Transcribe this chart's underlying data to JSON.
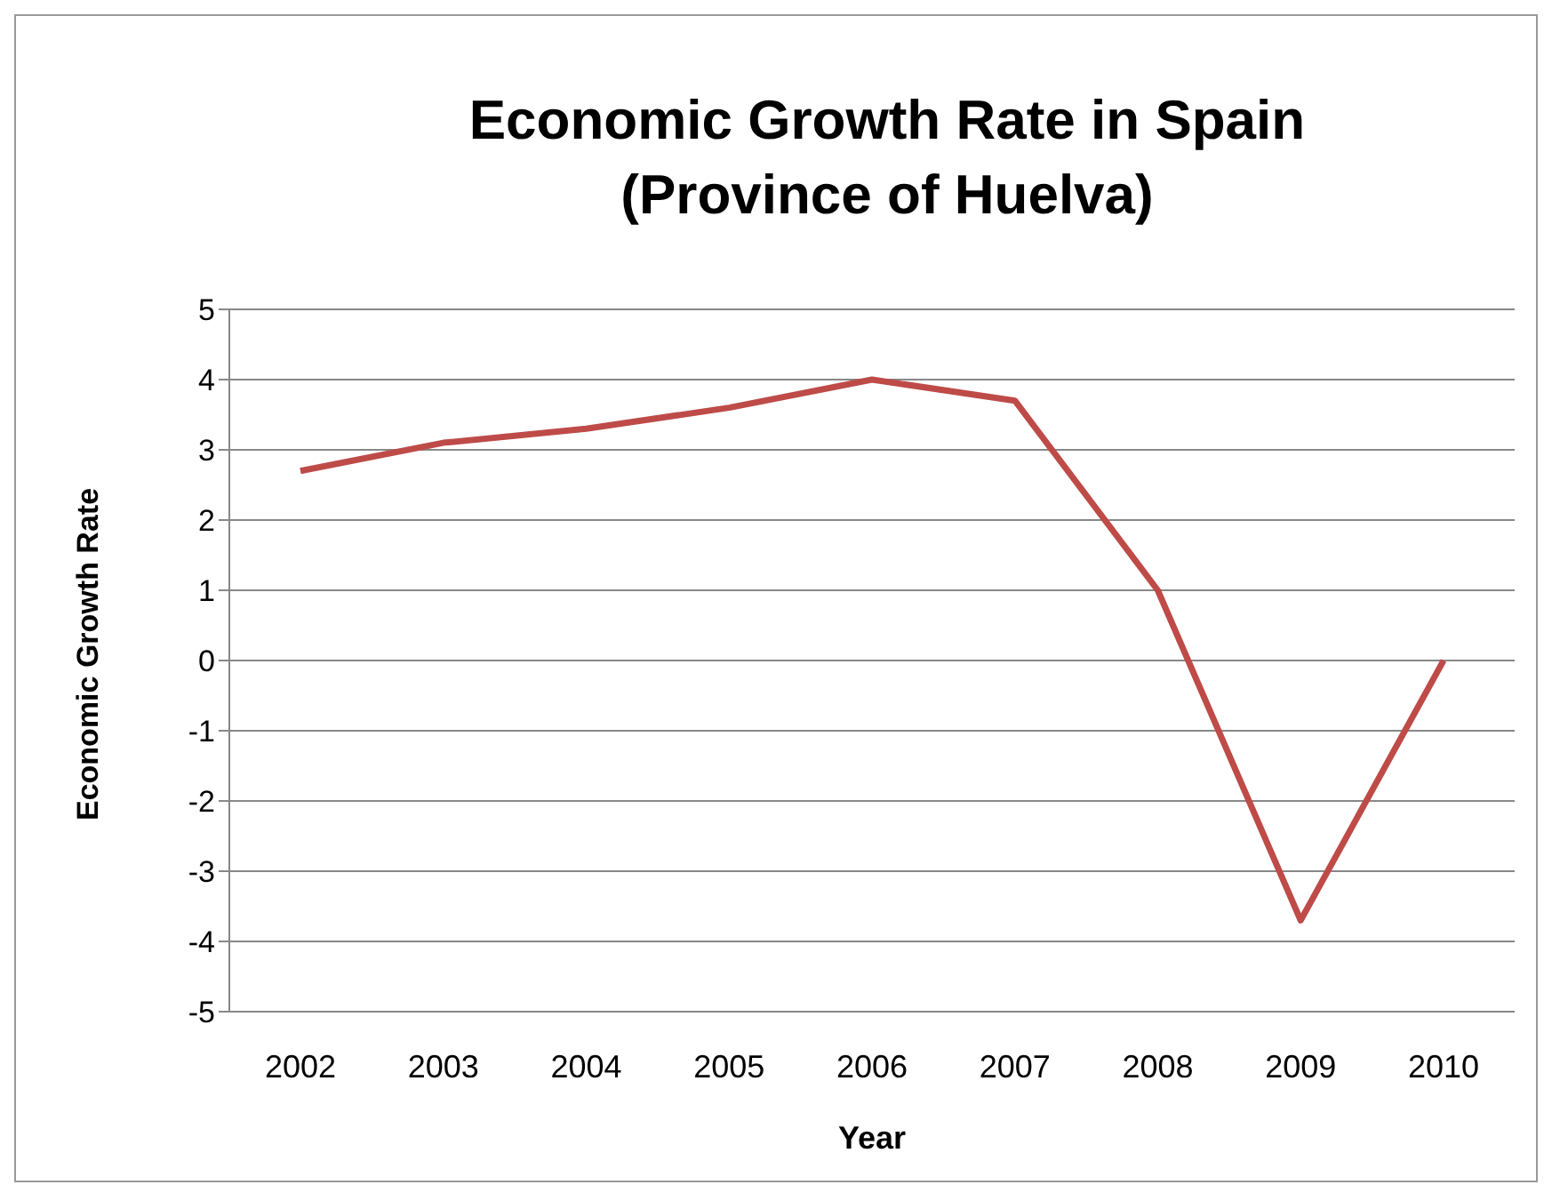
{
  "chart_data": {
    "type": "line",
    "title": "Economic Growth Rate in Spain (Province of Huelva)",
    "xlabel": "Year",
    "ylabel": "Economic Growth Rate",
    "categories": [
      "2002",
      "2003",
      "2004",
      "2005",
      "2006",
      "2007",
      "2008",
      "2009",
      "2010"
    ],
    "series": [
      {
        "color": "#be4b48",
        "values": [
          2.7,
          3.1,
          3.3,
          3.6,
          4.0,
          3.7,
          1.0,
          -3.7,
          0.0
        ]
      }
    ],
    "ylim": [
      -5,
      5
    ],
    "yticks": [
      -5,
      -4,
      -3,
      -2,
      -1,
      0,
      1,
      2,
      3,
      4,
      5
    ],
    "grid": "y",
    "legend": false,
    "marker": "none",
    "line_style": "solid"
  }
}
